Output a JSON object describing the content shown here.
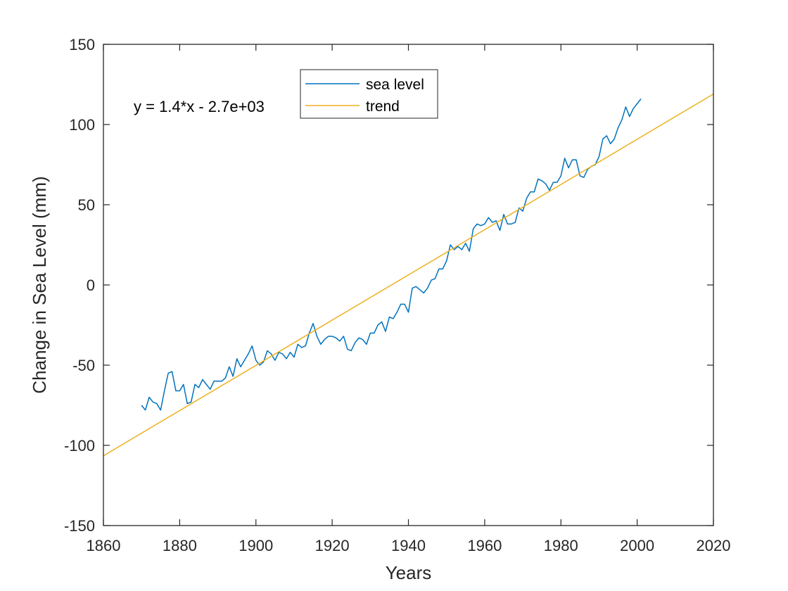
{
  "chart_data": {
    "type": "line",
    "title": "",
    "xlabel": "Years",
    "ylabel": "Change in Sea Level (mm)",
    "xlim": [
      1860,
      2020
    ],
    "ylim": [
      -150,
      150
    ],
    "xticks": [
      1860,
      1880,
      1900,
      1920,
      1940,
      1960,
      1980,
      2000,
      2020
    ],
    "yticks": [
      -150,
      -100,
      -50,
      0,
      50,
      100,
      150
    ],
    "grid": false,
    "legend_position": "top-center",
    "annotation": "y = 1.4*x - 2.7e+03",
    "series": [
      {
        "name": "sea level",
        "color": "#0072BD",
        "x": [
          1870,
          1871,
          1872,
          1873,
          1874,
          1875,
          1876,
          1877,
          1878,
          1879,
          1880,
          1881,
          1882,
          1883,
          1884,
          1885,
          1886,
          1887,
          1888,
          1889,
          1890,
          1891,
          1892,
          1893,
          1894,
          1895,
          1896,
          1897,
          1898,
          1899,
          1900,
          1901,
          1902,
          1903,
          1904,
          1905,
          1906,
          1907,
          1908,
          1909,
          1910,
          1911,
          1912,
          1913,
          1914,
          1915,
          1916,
          1917,
          1918,
          1919,
          1920,
          1921,
          1922,
          1923,
          1924,
          1925,
          1926,
          1927,
          1928,
          1929,
          1930,
          1931,
          1932,
          1933,
          1934,
          1935,
          1936,
          1937,
          1938,
          1939,
          1940,
          1941,
          1942,
          1943,
          1944,
          1945,
          1946,
          1947,
          1948,
          1949,
          1950,
          1951,
          1952,
          1953,
          1954,
          1955,
          1956,
          1957,
          1958,
          1959,
          1960,
          1961,
          1962,
          1963,
          1964,
          1965,
          1966,
          1967,
          1968,
          1969,
          1970,
          1971,
          1972,
          1973,
          1974,
          1975,
          1976,
          1977,
          1978,
          1979,
          1980,
          1981,
          1982,
          1983,
          1984,
          1985,
          1986,
          1987,
          1988,
          1989,
          1990,
          1991,
          1992,
          1993,
          1994,
          1995,
          1996,
          1997,
          1998,
          1999,
          2000,
          2001
        ],
        "y": [
          -75,
          -78,
          -70,
          -73,
          -74,
          -78,
          -66,
          -55,
          -54,
          -66,
          -66,
          -62,
          -74,
          -73,
          -62,
          -64,
          -59,
          -62,
          -65,
          -60,
          -60,
          -60,
          -58,
          -51,
          -57,
          -46,
          -51,
          -47,
          -43,
          -38,
          -47,
          -50,
          -48,
          -41,
          -43,
          -47,
          -42,
          -43,
          -46,
          -42,
          -45,
          -37,
          -39,
          -38,
          -30,
          -24,
          -32,
          -37,
          -34,
          -32,
          -32,
          -33,
          -35,
          -32,
          -40,
          -41,
          -36,
          -33,
          -34,
          -37,
          -30,
          -30,
          -25,
          -23,
          -29,
          -20,
          -21,
          -17,
          -12,
          -12,
          -17,
          -2,
          -1,
          -3,
          -5,
          -2,
          3,
          4,
          10,
          10,
          15,
          25,
          22,
          24,
          22,
          26,
          21,
          35,
          38,
          37,
          38,
          42,
          39,
          40,
          34,
          44,
          38,
          38,
          39,
          48,
          46,
          54,
          58,
          58,
          66,
          65,
          63,
          59,
          64,
          64,
          68,
          79,
          73,
          78,
          78,
          68,
          67,
          72,
          74,
          75,
          80,
          91,
          93,
          88,
          91,
          98,
          103,
          111,
          105,
          110,
          113,
          116
        ]
      },
      {
        "name": "trend",
        "color": "#EDB120",
        "x": [
          1860,
          2020
        ],
        "y": [
          -106.5,
          119.0
        ]
      }
    ]
  }
}
